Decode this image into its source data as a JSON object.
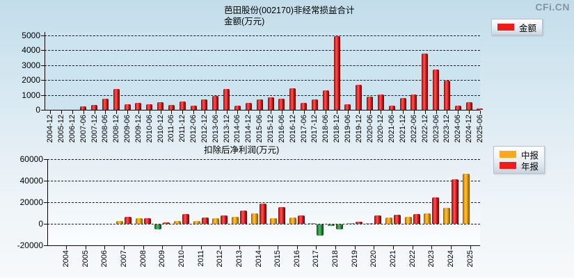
{
  "logo_text": "CFi.CN",
  "colors": {
    "report_red": "#ee1c1c",
    "mid_orange": "#ffa81e",
    "negative_green": "#2f9e4a",
    "grid_line": "#1b1b1b"
  },
  "chart_data": [
    {
      "type": "bar",
      "title": "芭田股份(002170)非经常损益合计",
      "subtitle": "金额(万元)",
      "ylabel": "金额(万元)",
      "ylim": [
        0,
        5000
      ],
      "y_ticks": [
        0,
        1000,
        2000,
        3000,
        4000,
        5000
      ],
      "grid": true,
      "legend_position": "right-top",
      "legend": [
        {
          "label": "金额",
          "color": "#ee1c1c"
        }
      ],
      "categories": [
        "2004-12",
        "2005-12",
        "2006-12",
        "2007-06",
        "2007-12",
        "2008-06",
        "2008-12",
        "2009-06",
        "2009-12",
        "2010-06",
        "2010-12",
        "2011-06",
        "2011-12",
        "2012-06",
        "2012-12",
        "2013-06",
        "2013-12",
        "2014-06",
        "2014-12",
        "2015-06",
        "2015-12",
        "2016-06",
        "2016-12",
        "2017-06",
        "2017-12",
        "2018-06",
        "2018-12",
        "2019-06",
        "2019-12",
        "2020-06",
        "2020-12",
        "2021-06",
        "2021-12",
        "2022-06",
        "2022-12",
        "2023-06",
        "2023-12",
        "2024-06",
        "2024-12",
        "2025-06"
      ],
      "series": [
        {
          "name": "金额",
          "color": "#ee1c1c",
          "values": [
            null,
            null,
            null,
            230,
            330,
            730,
            1380,
            380,
            485,
            380,
            520,
            350,
            575,
            290,
            680,
            940,
            1380,
            260,
            455,
            710,
            850,
            730,
            1440,
            455,
            700,
            1320,
            4950,
            370,
            1700,
            900,
            1030,
            260,
            780,
            1040,
            3770,
            2700,
            1970,
            300,
            500,
            110
          ]
        }
      ],
      "negative_color": "#2f9e4a"
    },
    {
      "type": "bar",
      "title": "扣除后净利润(万元)",
      "ylabel": "扣除后净利润(万元)",
      "ylim": [
        -20000,
        60000
      ],
      "y_ticks": [
        -20000,
        0,
        20000,
        40000,
        60000
      ],
      "grid": true,
      "legend_position": "right-top",
      "legend": [
        {
          "label": "中报",
          "color": "#ffa81e"
        },
        {
          "label": "年报",
          "color": "#ee1c1c"
        }
      ],
      "categories": [
        "2004",
        "2005",
        "2006",
        "2007",
        "2008",
        "2009",
        "2010",
        "2011",
        "2012",
        "2013",
        "2014",
        "2015",
        "2016",
        "2017",
        "2018",
        "2019",
        "2020",
        "2021",
        "2022",
        "2023",
        "2024",
        "2025"
      ],
      "series": [
        {
          "name": "中报",
          "color": "#ffa81e",
          "values": [
            null,
            null,
            null,
            2900,
            5000,
            -4800,
            2850,
            2800,
            5400,
            6500,
            9800,
            5300,
            5900,
            500,
            -1500,
            500,
            600,
            6000,
            6600,
            9450,
            14700,
            46400
          ]
        },
        {
          "name": "年报",
          "color": "#ee1c1c",
          "values": [
            null,
            null,
            null,
            6500,
            5000,
            1000,
            9200,
            5700,
            7700,
            12000,
            18800,
            15400,
            7700,
            -10500,
            -4800,
            2000,
            7500,
            8500,
            8800,
            24800,
            41300,
            null
          ]
        }
      ],
      "negative_color": "#2f9e4a"
    }
  ]
}
